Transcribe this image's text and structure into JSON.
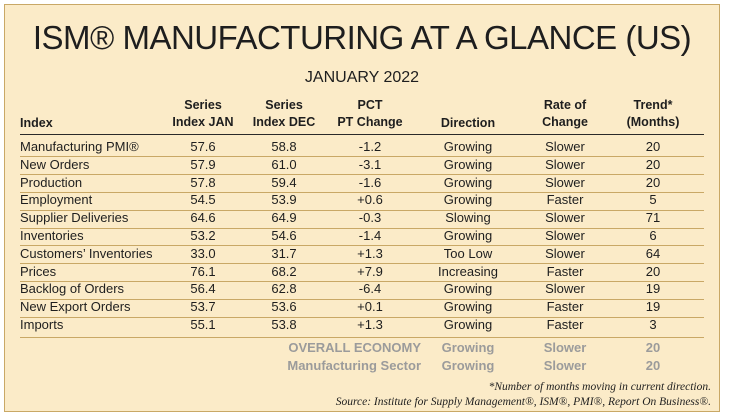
{
  "title": "ISM® MANUFACTURING AT A GLANCE (US)",
  "subtitle": "JANUARY 2022",
  "headers": {
    "index": "Index",
    "jan_l1": "Series",
    "jan_l2": "Index JAN",
    "dec_l1": "Series",
    "dec_l2": "Index DEC",
    "pct_l1": "PCT",
    "pct_l2": "PT Change",
    "direction": "Direction",
    "rate_l1": "Rate of",
    "rate_l2": "Change",
    "trend_l1": "Trend*",
    "trend_l2": "(Months)"
  },
  "rows": [
    {
      "index": "Manufacturing PMI®",
      "jan": "57.6",
      "dec": "58.8",
      "pct": "-1.2",
      "direction": "Growing",
      "rate": "Slower",
      "trend": "20"
    },
    {
      "index": "New Orders",
      "jan": "57.9",
      "dec": "61.0",
      "pct": "-3.1",
      "direction": "Growing",
      "rate": "Slower",
      "trend": "20"
    },
    {
      "index": "Production",
      "jan": "57.8",
      "dec": "59.4",
      "pct": "-1.6",
      "direction": "Growing",
      "rate": "Slower",
      "trend": "20"
    },
    {
      "index": "Employment",
      "jan": "54.5",
      "dec": "53.9",
      "pct": "+0.6",
      "direction": "Growing",
      "rate": "Faster",
      "trend": "5"
    },
    {
      "index": "Supplier Deliveries",
      "jan": "64.6",
      "dec": "64.9",
      "pct": "-0.3",
      "direction": "Slowing",
      "rate": "Slower",
      "trend": "71"
    },
    {
      "index": "Inventories",
      "jan": "53.2",
      "dec": "54.6",
      "pct": "-1.4",
      "direction": "Growing",
      "rate": "Slower",
      "trend": "6"
    },
    {
      "index": "Customers’ Inventories",
      "jan": "33.0",
      "dec": "31.7",
      "pct": "+1.3",
      "direction": "Too Low",
      "rate": "Slower",
      "trend": "64"
    },
    {
      "index": "Prices",
      "jan": "76.1",
      "dec": "68.2",
      "pct": "+7.9",
      "direction": "Increasing",
      "rate": "Faster",
      "trend": "20"
    },
    {
      "index": "Backlog of Orders",
      "jan": "56.4",
      "dec": "62.8",
      "pct": "-6.4",
      "direction": "Growing",
      "rate": "Slower",
      "trend": "19"
    },
    {
      "index": "New Export Orders",
      "jan": "53.7",
      "dec": "53.6",
      "pct": "+0.1",
      "direction": "Growing",
      "rate": "Faster",
      "trend": "19"
    },
    {
      "index": "Imports",
      "jan": "55.1",
      "dec": "53.8",
      "pct": "+1.3",
      "direction": "Growing",
      "rate": "Faster",
      "trend": "3"
    }
  ],
  "summary": [
    {
      "label": "OVERALL ECONOMY",
      "direction": "Growing",
      "rate": "Slower",
      "trend": "20"
    },
    {
      "label": "Manufacturing Sector",
      "direction": "Growing",
      "rate": "Slower",
      "trend": "20"
    }
  ],
  "footnotes": {
    "note": "*Number of months moving in current direction.",
    "source": "Source: Institute for Supply Management®, ISM®, PMI®, Report On Business®."
  },
  "colors": {
    "background": "#fbebc8",
    "border": "#c9a866",
    "summary_text": "#9b9b9b"
  }
}
